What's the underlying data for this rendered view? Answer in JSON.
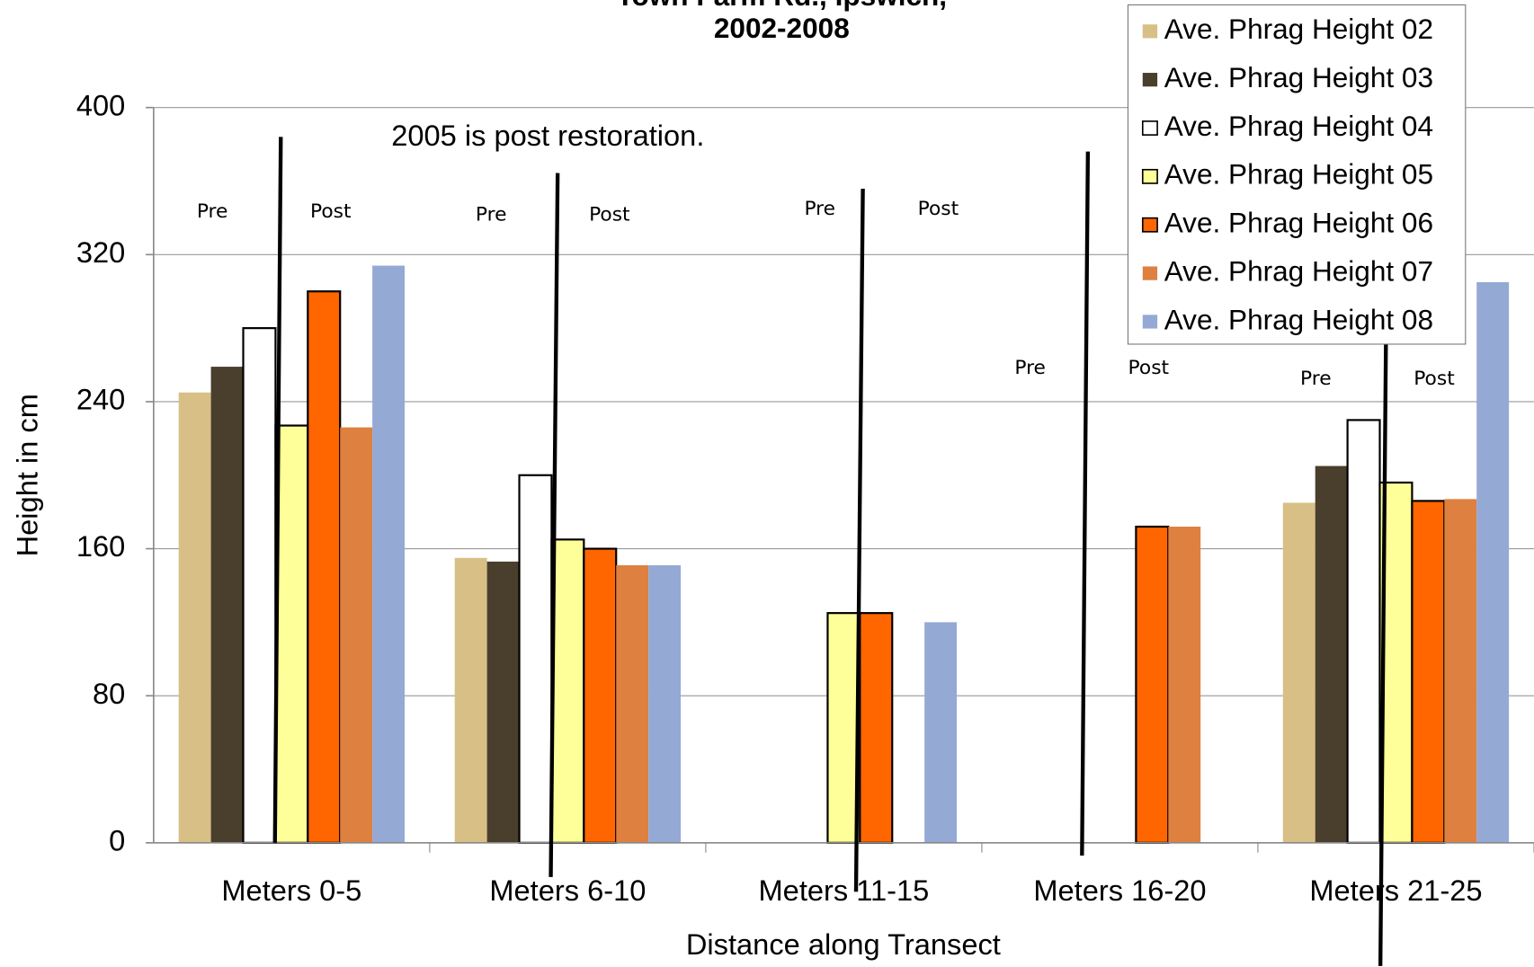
{
  "chart_data": {
    "type": "bar",
    "title_lines": [
      "Town Farm Rd., Ipswich,",
      "2002-2008"
    ],
    "x_label": "Distance along Transect",
    "y_label": "Height in cm",
    "categories": [
      "Meters  0-5",
      "Meters  6-10",
      "Meters  11-15",
      "Meters  16-20",
      "Meters  21-25"
    ],
    "series": [
      {
        "name": "Ave. Phrag Height 02",
        "color": "#d8bf86",
        "values": [
          245,
          155,
          null,
          null,
          185
        ]
      },
      {
        "name": "Ave. Phrag Height 03",
        "color": "#4a3e2c",
        "values": [
          259,
          153,
          null,
          null,
          205
        ]
      },
      {
        "name": "Ave. Phrag Height 04",
        "color": "#ffffff",
        "values": [
          280,
          200,
          null,
          null,
          230
        ]
      },
      {
        "name": "Ave. Phrag Height 05",
        "color": "#ffff99",
        "values": [
          227,
          165,
          125,
          null,
          196
        ]
      },
      {
        "name": "Ave. Phrag Height 06",
        "color": "#ff6600",
        "values": [
          300,
          160,
          125,
          172,
          186
        ]
      },
      {
        "name": "Ave. Phrag Height 07",
        "color": "#dd8040",
        "values": [
          226,
          151,
          null,
          172,
          187
        ]
      },
      {
        "name": "Ave. Phrag Height 08",
        "color": "#94a9d4",
        "values": [
          314,
          151,
          120,
          null,
          305
        ]
      }
    ],
    "ylim": [
      0,
      400
    ],
    "yticks": [
      0,
      80,
      160,
      240,
      320,
      400
    ],
    "grid": true,
    "legend": "top-right",
    "annotations": {
      "note": "2005 is post restoration.",
      "pre_post": [
        [
          "Pre",
          "Post"
        ],
        [
          "Pre",
          "Post"
        ],
        [
          "Pre",
          "Post"
        ],
        [
          "Pre",
          "Post"
        ],
        [
          "Pre",
          "Post"
        ]
      ]
    }
  }
}
